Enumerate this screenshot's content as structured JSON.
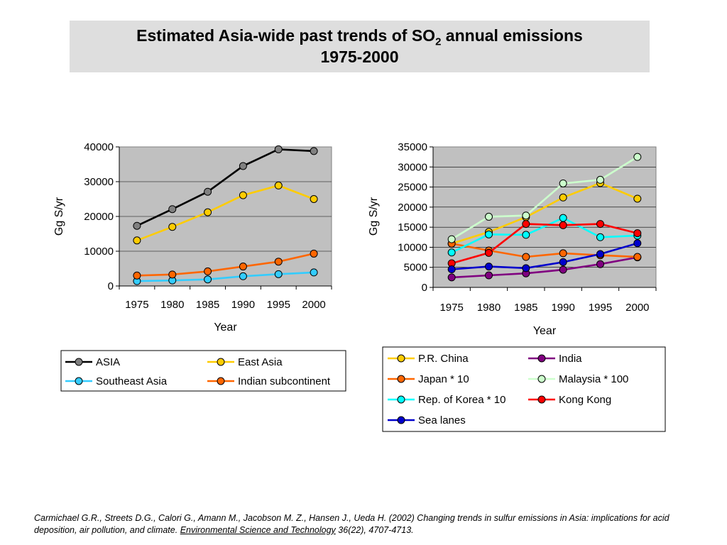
{
  "title": {
    "line1_prefix": "Estimated Asia-wide past trends of SO",
    "line1_sub": "2",
    "line1_suffix": " annual emissions",
    "line2": "1975-2000"
  },
  "citation": {
    "authors": "Carmichael G.R., Streets D.G., Calori G., Amann M., Jacobson M. Z., Hansen J., Ueda H. (2002) Changing trends in sulfur emissions in Asia: implications for acid deposition, air pollution, and climate. ",
    "journal": "Environmental Science and Technology",
    "details": " 36(22), 4707-4713."
  },
  "chart_data": [
    {
      "type": "line",
      "title": "",
      "xlabel": "Year",
      "ylabel": "Gg S/yr",
      "categories": [
        "1975",
        "1980",
        "1985",
        "1990",
        "1995",
        "2000"
      ],
      "ylim": [
        0,
        40000
      ],
      "yticks": [
        "0",
        "10000",
        "20000",
        "30000",
        "40000"
      ],
      "grid": true,
      "legend_position": "bottom",
      "series": [
        {
          "name": "ASIA",
          "color": "#000000",
          "marker": "#808080",
          "values": [
            17300,
            22100,
            27100,
            34500,
            39300,
            38800
          ]
        },
        {
          "name": "East Asia",
          "color": "#ffcc00",
          "marker": "#ffcc00",
          "values": [
            13100,
            17000,
            21200,
            26100,
            28900,
            25000
          ]
        },
        {
          "name": "Southeast Asia",
          "color": "#33ccff",
          "marker": "#33ccff",
          "values": [
            1400,
            1600,
            1900,
            2800,
            3400,
            3900
          ]
        },
        {
          "name": "Indian subcontinent",
          "color": "#ff6600",
          "marker": "#ff6600",
          "values": [
            3000,
            3300,
            4200,
            5600,
            7000,
            9300
          ]
        }
      ]
    },
    {
      "type": "line",
      "title": "",
      "xlabel": "Year",
      "ylabel": "Gg S/yr",
      "categories": [
        "1975",
        "1980",
        "1985",
        "1990",
        "1995",
        "2000"
      ],
      "ylim": [
        0,
        35000
      ],
      "yticks": [
        "0",
        "5000",
        "10000",
        "15000",
        "20000",
        "25000",
        "30000",
        "35000"
      ],
      "grid": true,
      "legend_position": "bottom",
      "series": [
        {
          "name": "P.R. China",
          "color": "#ffcc00",
          "marker": "#ffcc00",
          "values": [
            10900,
            13800,
            17500,
            22400,
            26000,
            22100
          ]
        },
        {
          "name": "India",
          "color": "#800080",
          "marker": "#800080",
          "values": [
            2500,
            3000,
            3500,
            4400,
            5800,
            7500
          ]
        },
        {
          "name": "Japan * 10",
          "color": "#ff6600",
          "marker": "#ff6600",
          "values": [
            10900,
            9200,
            7600,
            8500,
            8000,
            7600
          ]
        },
        {
          "name": "Malaysia * 100",
          "color": "#ccffcc",
          "marker": "#ccffcc",
          "values": [
            12000,
            17600,
            17900,
            25900,
            26800,
            32500
          ]
        },
        {
          "name": "Rep. of Korea * 10",
          "color": "#00ffff",
          "marker": "#00ffff",
          "values": [
            8700,
            13200,
            13100,
            17300,
            12500,
            12900
          ]
        },
        {
          "name": "Kong Kong",
          "color": "#ff0000",
          "marker": "#ff0000",
          "values": [
            6000,
            8600,
            15800,
            15500,
            15800,
            13500
          ]
        },
        {
          "name": "Sea lanes",
          "color": "#0000cc",
          "marker": "#0000cc",
          "values": [
            4500,
            5200,
            4800,
            6300,
            8300,
            11000
          ]
        }
      ]
    }
  ]
}
